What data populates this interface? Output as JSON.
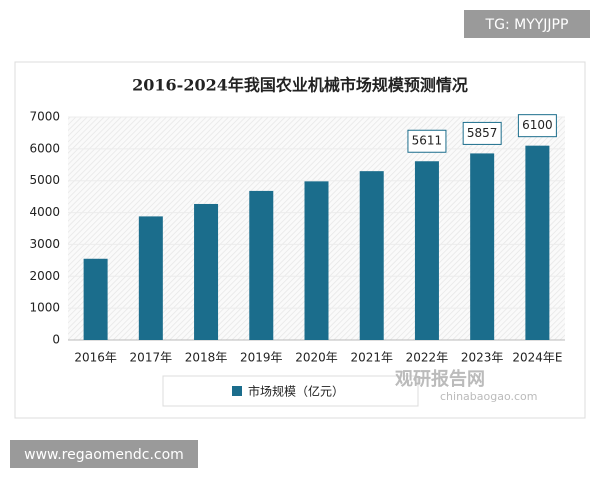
{
  "chart_data": {
    "type": "bar",
    "title": "2016-2024年我国农业机械市场规模预测情况",
    "categories": [
      "2016年",
      "2017年",
      "2018年",
      "2019年",
      "2020年",
      "2021年",
      "2022年",
      "2023年",
      "2024年E"
    ],
    "series": [
      {
        "name": "市场规模（亿元）",
        "color": "#1b6d8c",
        "values": [
          2550,
          3880,
          4270,
          4680,
          4980,
          5300,
          5611,
          5857,
          6100
        ],
        "value_labels": [
          null,
          null,
          null,
          null,
          null,
          null,
          "5611",
          "5857",
          "6100"
        ]
      }
    ],
    "ylim": [
      0,
      7000
    ],
    "yticks": [
      0,
      1000,
      2000,
      3000,
      4000,
      5000,
      6000,
      7000
    ],
    "grid": true,
    "legend": "bottom"
  },
  "watermarks": {
    "badge_top": "TG: MYYJJPP",
    "badge_bottom": "www.regaomendc.com",
    "logo_name": "观研报告网",
    "logo_url": "chinabaogao.com"
  }
}
